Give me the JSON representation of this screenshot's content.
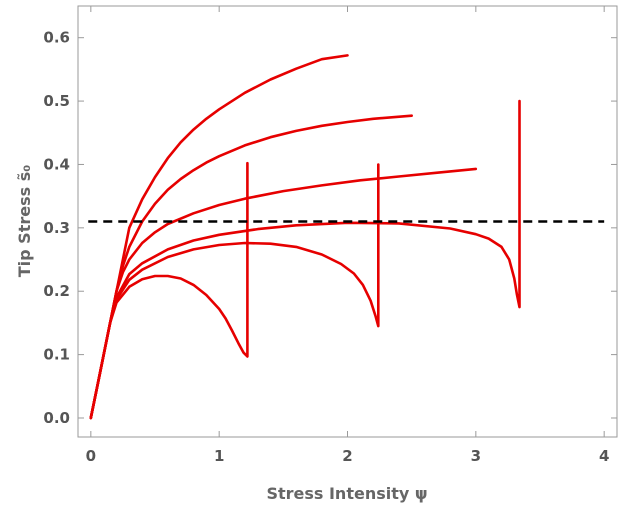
{
  "chart_data": {
    "type": "line",
    "xlabel": "Stress Intensity ψ",
    "ylabel": "Tip Stress s̃₀",
    "xlim": [
      -0.1,
      4.1
    ],
    "ylim": [
      -0.03,
      0.65
    ],
    "x_ticks": [
      0,
      1,
      2,
      3,
      4
    ],
    "y_ticks": [
      0.0,
      0.1,
      0.2,
      0.3,
      0.4,
      0.5,
      0.6
    ],
    "x_tick_labels": [
      "0",
      "1",
      "2",
      "3",
      "4"
    ],
    "y_tick_labels": [
      "0.0",
      "0.1",
      "0.2",
      "0.3",
      "0.4",
      "0.5",
      "0.6"
    ],
    "grid": false,
    "colors": {
      "series": "#e60000",
      "threshold": "#000000"
    },
    "threshold": {
      "y": 0.31,
      "style": "dashed"
    },
    "series": [
      {
        "x": [
          0,
          0.05,
          0.1,
          0.15,
          0.2,
          0.25,
          0.3,
          0.4,
          0.5,
          0.6,
          0.7,
          0.8,
          0.9,
          1.0,
          1.2,
          1.4,
          1.6,
          1.8,
          2.0
        ],
        "y": [
          0,
          0.05,
          0.1,
          0.15,
          0.2,
          0.25,
          0.3,
          0.345,
          0.38,
          0.41,
          0.435,
          0.455,
          0.472,
          0.487,
          0.513,
          0.534,
          0.551,
          0.566,
          0.572
        ]
      },
      {
        "x": [
          0,
          0.05,
          0.1,
          0.15,
          0.2,
          0.25,
          0.3,
          0.4,
          0.5,
          0.6,
          0.7,
          0.8,
          0.9,
          1.0,
          1.2,
          1.4,
          1.6,
          1.8,
          2.0,
          2.2,
          2.5
        ],
        "y": [
          0,
          0.05,
          0.1,
          0.15,
          0.2,
          0.24,
          0.27,
          0.31,
          0.338,
          0.36,
          0.377,
          0.391,
          0.403,
          0.413,
          0.43,
          0.443,
          0.453,
          0.461,
          0.467,
          0.472,
          0.477
        ]
      },
      {
        "x": [
          0,
          0.05,
          0.1,
          0.15,
          0.2,
          0.25,
          0.3,
          0.4,
          0.5,
          0.6,
          0.8,
          1.0,
          1.2,
          1.5,
          1.8,
          2.1,
          2.4,
          2.7,
          3.0
        ],
        "y": [
          0,
          0.05,
          0.1,
          0.15,
          0.2,
          0.23,
          0.25,
          0.276,
          0.293,
          0.306,
          0.323,
          0.336,
          0.346,
          0.358,
          0.367,
          0.375,
          0.381,
          0.387,
          0.393
        ]
      },
      {
        "x": [
          0,
          0.05,
          0.1,
          0.15,
          0.2,
          0.3,
          0.4,
          0.6,
          0.8,
          1.0,
          1.3,
          1.6,
          2.0,
          2.4,
          2.8,
          3.0,
          3.1,
          3.2,
          3.26,
          3.3,
          3.32,
          3.34,
          3.34
        ],
        "y": [
          0,
          0.05,
          0.1,
          0.15,
          0.19,
          0.227,
          0.244,
          0.266,
          0.28,
          0.289,
          0.298,
          0.304,
          0.308,
          0.307,
          0.299,
          0.29,
          0.283,
          0.27,
          0.25,
          0.22,
          0.195,
          0.175,
          0.5
        ]
      },
      {
        "x": [
          0,
          0.05,
          0.1,
          0.15,
          0.2,
          0.3,
          0.4,
          0.6,
          0.8,
          1.0,
          1.2,
          1.4,
          1.6,
          1.8,
          1.95,
          2.05,
          2.12,
          2.18,
          2.22,
          2.24,
          2.24
        ],
        "y": [
          0,
          0.05,
          0.1,
          0.15,
          0.187,
          0.218,
          0.234,
          0.254,
          0.266,
          0.273,
          0.276,
          0.275,
          0.27,
          0.258,
          0.243,
          0.228,
          0.21,
          0.185,
          0.16,
          0.145,
          0.4
        ]
      },
      {
        "x": [
          0,
          0.05,
          0.1,
          0.15,
          0.2,
          0.3,
          0.4,
          0.5,
          0.6,
          0.7,
          0.8,
          0.9,
          1.0,
          1.05,
          1.1,
          1.15,
          1.19,
          1.22,
          1.22
        ],
        "y": [
          0,
          0.05,
          0.1,
          0.15,
          0.182,
          0.207,
          0.219,
          0.224,
          0.224,
          0.22,
          0.21,
          0.194,
          0.172,
          0.157,
          0.138,
          0.118,
          0.103,
          0.097,
          0.402
        ]
      }
    ]
  }
}
